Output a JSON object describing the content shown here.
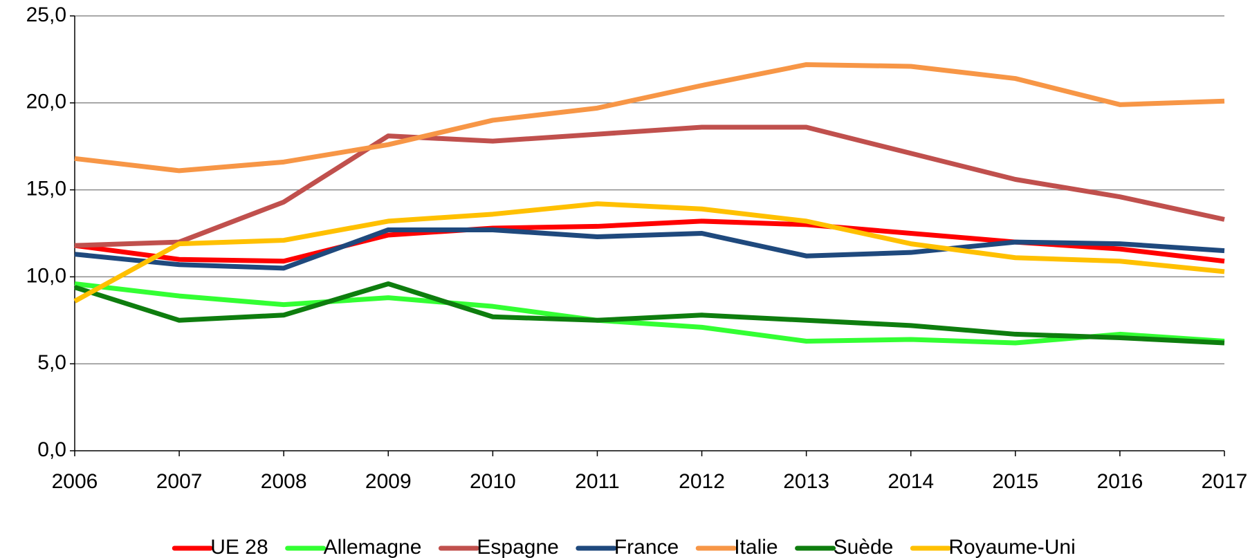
{
  "chart_data": {
    "type": "line",
    "categories": [
      "2006",
      "2007",
      "2008",
      "2009",
      "2010",
      "2011",
      "2012",
      "2013",
      "2014",
      "2015",
      "2016",
      "2017"
    ],
    "ylim": [
      0,
      25
    ],
    "yticks": [
      {
        "value": 0,
        "label": "0,0"
      },
      {
        "value": 5,
        "label": "5,0"
      },
      {
        "value": 10,
        "label": "10,0"
      },
      {
        "value": 15,
        "label": "15,0"
      },
      {
        "value": 20,
        "label": "20,0"
      },
      {
        "value": 25,
        "label": "25,0"
      }
    ],
    "grid": true,
    "legend": "bottom",
    "series": [
      {
        "name": "UE 28",
        "color": "#ff0000",
        "values": [
          11.8,
          11.0,
          10.9,
          12.4,
          12.8,
          12.9,
          13.2,
          13.0,
          12.5,
          12.0,
          11.6,
          10.9
        ]
      },
      {
        "name": "Allemagne",
        "color": "#33ff33",
        "values": [
          9.6,
          8.9,
          8.4,
          8.8,
          8.3,
          7.5,
          7.1,
          6.3,
          6.4,
          6.2,
          6.7,
          6.3
        ]
      },
      {
        "name": "Espagne",
        "color": "#c0504d",
        "values": [
          11.8,
          12.0,
          14.3,
          18.1,
          17.8,
          18.2,
          18.6,
          18.6,
          17.1,
          15.6,
          14.6,
          13.3
        ]
      },
      {
        "name": "France",
        "color": "#1f497d",
        "values": [
          11.3,
          10.7,
          10.5,
          12.7,
          12.7,
          12.3,
          12.5,
          11.2,
          11.4,
          12.0,
          11.9,
          11.5
        ]
      },
      {
        "name": "Italie",
        "color": "#f79646",
        "values": [
          16.8,
          16.1,
          16.6,
          17.6,
          19.0,
          19.7,
          21.0,
          22.2,
          22.1,
          21.4,
          19.9,
          20.1
        ]
      },
      {
        "name": "Suède",
        "color": "#0e7d0e",
        "values": [
          9.4,
          7.5,
          7.8,
          9.6,
          7.7,
          7.5,
          7.8,
          7.5,
          7.2,
          6.7,
          6.5,
          6.2
        ]
      },
      {
        "name": "Royaume-Uni",
        "color": "#ffc000",
        "values": [
          8.6,
          11.9,
          12.1,
          13.2,
          13.6,
          14.2,
          13.9,
          13.2,
          11.9,
          11.1,
          10.9,
          10.3
        ]
      }
    ]
  }
}
